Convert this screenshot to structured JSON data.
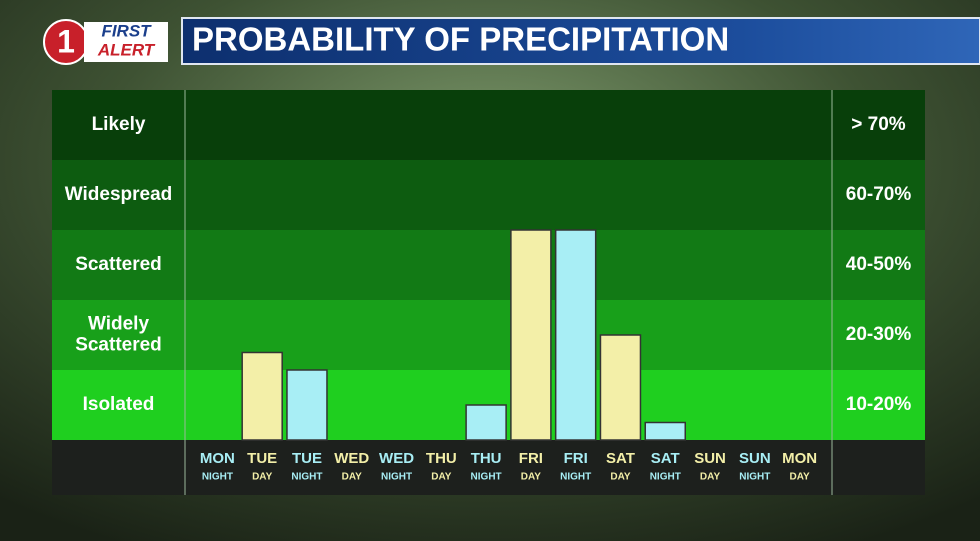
{
  "chart_data": {
    "type": "bar",
    "logo": {
      "number": "1",
      "line1": "FIRST",
      "line2": "ALERT"
    },
    "title": "PROBABILITY OF PRECIPITATION",
    "ylim": [
      0,
      5
    ],
    "bands": [
      {
        "name": [
          "Isolated"
        ],
        "range": "10-20%",
        "color": "#1fcf1f"
      },
      {
        "name": [
          "Widely",
          "Scattered"
        ],
        "range": "20-30%",
        "color": "#18a01a"
      },
      {
        "name": [
          "Scattered"
        ],
        "range": "40-50%",
        "color": "#127a15"
      },
      {
        "name": [
          "Widespread"
        ],
        "range": "60-70%",
        "color": "#0d5c10"
      },
      {
        "name": [
          "Likely"
        ],
        "range": "> 70%",
        "color": "#083f0a"
      }
    ],
    "categories": [
      {
        "day": "MON",
        "period": "NIGHT"
      },
      {
        "day": "TUE",
        "period": "DAY"
      },
      {
        "day": "TUE",
        "period": "NIGHT"
      },
      {
        "day": "WED",
        "period": "DAY"
      },
      {
        "day": "WED",
        "period": "NIGHT"
      },
      {
        "day": "THU",
        "period": "DAY"
      },
      {
        "day": "THU",
        "period": "NIGHT"
      },
      {
        "day": "FRI",
        "period": "DAY"
      },
      {
        "day": "FRI",
        "period": "NIGHT"
      },
      {
        "day": "SAT",
        "period": "DAY"
      },
      {
        "day": "SAT",
        "period": "NIGHT"
      },
      {
        "day": "SUN",
        "period": "DAY"
      },
      {
        "day": "SUN",
        "period": "NIGHT"
      },
      {
        "day": "MON",
        "period": "DAY"
      }
    ],
    "values": [
      0,
      1.25,
      1.0,
      0,
      0,
      0,
      0.5,
      3.0,
      3.0,
      1.5,
      0.25,
      0,
      0,
      0
    ],
    "colors": [
      "#a8eef5",
      "#f3efa8",
      "#a8eef5",
      "#f3efa8",
      "#a8eef5",
      "#f3efa8",
      "#a8eef5",
      "#f3efa8",
      "#a8eef5",
      "#f3efa8",
      "#a8eef5",
      "#f3efa8",
      "#a8eef5",
      "#f3efa8"
    ],
    "label_colors": [
      "#a8eef5",
      "#f3efa8",
      "#a8eef5",
      "#f3efa8",
      "#a8eef5",
      "#f3efa8",
      "#a8eef5",
      "#f3efa8",
      "#a8eef5",
      "#f3efa8",
      "#a8eef5",
      "#f3efa8",
      "#a8eef5",
      "#f3efa8"
    ]
  }
}
